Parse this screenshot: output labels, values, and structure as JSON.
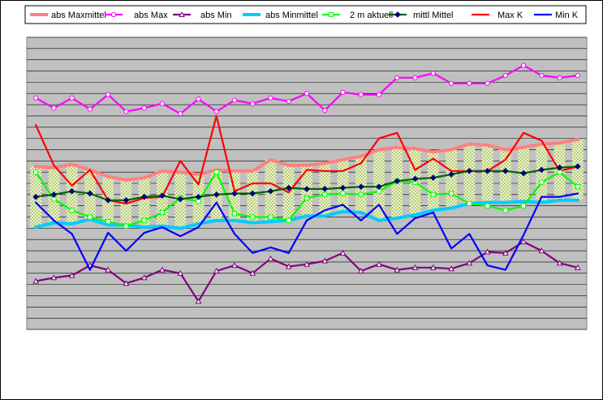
{
  "chart_data": {
    "type": "line",
    "title": "",
    "xlabel": "",
    "ylabel": "",
    "ylim": [
      0,
      26
    ],
    "grid": true,
    "legend_position": "top",
    "plot_background": "#c0c0c0",
    "grid_color": "#000000",
    "x": [
      1,
      2,
      3,
      4,
      5,
      6,
      7,
      8,
      9,
      10,
      11,
      12,
      13,
      14,
      15,
      16,
      17,
      18,
      19,
      20,
      21,
      22,
      23,
      24,
      25,
      26,
      27,
      28,
      29,
      30,
      31
    ],
    "series": [
      {
        "name": "abs Maxmittel",
        "color": "#ff8080",
        "marker": "none",
        "style": "thick",
        "values": [
          14.5,
          14.4,
          14.7,
          14.2,
          13.6,
          13.3,
          13.5,
          14.1,
          14.0,
          13.8,
          14.2,
          14.1,
          14.1,
          15.1,
          14.6,
          14.6,
          14.8,
          15.1,
          15.4,
          16.0,
          16.2,
          16.1,
          15.8,
          16.0,
          16.5,
          16.4,
          16.0,
          16.2,
          16.5,
          16.6,
          16.9
        ]
      },
      {
        "name": "abs Max",
        "color": "#ff00ff",
        "marker": "circle-open",
        "values": [
          20.6,
          19.7,
          20.6,
          19.6,
          20.9,
          19.4,
          19.7,
          20.1,
          19.2,
          20.5,
          19.4,
          20.4,
          20.1,
          20.6,
          20.3,
          21.0,
          19.5,
          21.1,
          20.9,
          20.9,
          22.4,
          22.4,
          22.8,
          21.9,
          21.9,
          21.9,
          22.6,
          23.5,
          22.6,
          22.4,
          22.6
        ]
      },
      {
        "name": "abs Min",
        "color": "#800080",
        "marker": "triangle-open",
        "values": [
          4.3,
          4.6,
          4.8,
          5.7,
          5.3,
          4.1,
          4.6,
          5.3,
          5.0,
          2.5,
          5.2,
          5.7,
          5.0,
          6.3,
          5.6,
          5.8,
          6.1,
          6.8,
          5.2,
          5.8,
          5.3,
          5.5,
          5.5,
          5.4,
          5.9,
          6.9,
          6.8,
          7.8,
          7.0,
          5.9,
          5.5
        ]
      },
      {
        "name": "abs Minmittel",
        "color": "#00ccff",
        "marker": "none",
        "style": "thick",
        "values": [
          9.1,
          9.5,
          9.4,
          9.8,
          9.3,
          9.3,
          9.1,
          9.2,
          9.0,
          9.4,
          9.7,
          9.7,
          9.5,
          9.6,
          9.7,
          10.1,
          10.1,
          10.5,
          10.4,
          9.7,
          9.9,
          10.2,
          10.6,
          10.8,
          11.2,
          11.3,
          11.3,
          11.4,
          11.3,
          11.5,
          11.5
        ]
      },
      {
        "name": "2 m aktuell",
        "color": "#00ff00",
        "marker": "square-open",
        "values": [
          14.0,
          11.6,
          10.6,
          10.0,
          9.6,
          9.2,
          9.7,
          10.4,
          11.7,
          11.4,
          14.0,
          10.3,
          10.0,
          10.0,
          9.7,
          11.7,
          12.0,
          12.1,
          12.0,
          12.3,
          13.2,
          13.1,
          12.0,
          12.1,
          11.2,
          11.0,
          10.6,
          11.0,
          13.1,
          14.0,
          12.7
        ]
      },
      {
        "name": "mittl Mittel",
        "color": "#006400",
        "marker": "diamond-filled",
        "marker_color": "#000080",
        "values": [
          11.8,
          12.0,
          12.3,
          12.1,
          11.5,
          11.5,
          11.8,
          11.9,
          11.6,
          11.8,
          12.0,
          12.1,
          12.1,
          12.3,
          12.6,
          12.5,
          12.5,
          12.6,
          12.7,
          12.7,
          13.2,
          13.4,
          13.5,
          13.8,
          14.1,
          14.1,
          14.1,
          13.9,
          14.2,
          14.4,
          14.5
        ]
      },
      {
        "name": "Max K",
        "color": "#ff0000",
        "marker": "none",
        "values": [
          18.2,
          14.6,
          12.8,
          14.2,
          11.5,
          11.2,
          11.7,
          11.8,
          15.0,
          12.9,
          19.0,
          12.3,
          13.0,
          13.0,
          12.2,
          14.2,
          14.1,
          14.1,
          14.8,
          17.0,
          17.5,
          14.2,
          15.2,
          14.1,
          14.1,
          14.1,
          15.1,
          17.5,
          16.8,
          14.1,
          14.5
        ]
      },
      {
        "name": "Min K",
        "color": "#0000ff",
        "marker": "none",
        "values": [
          11.3,
          9.7,
          8.5,
          5.3,
          8.6,
          7.0,
          8.6,
          9.1,
          8.3,
          9.1,
          11.3,
          8.5,
          6.8,
          7.3,
          6.8,
          9.7,
          10.6,
          11.1,
          9.7,
          11.1,
          8.5,
          9.9,
          10.4,
          7.2,
          8.5,
          5.7,
          5.3,
          8.4,
          11.8,
          11.8,
          12.1
        ]
      }
    ]
  }
}
